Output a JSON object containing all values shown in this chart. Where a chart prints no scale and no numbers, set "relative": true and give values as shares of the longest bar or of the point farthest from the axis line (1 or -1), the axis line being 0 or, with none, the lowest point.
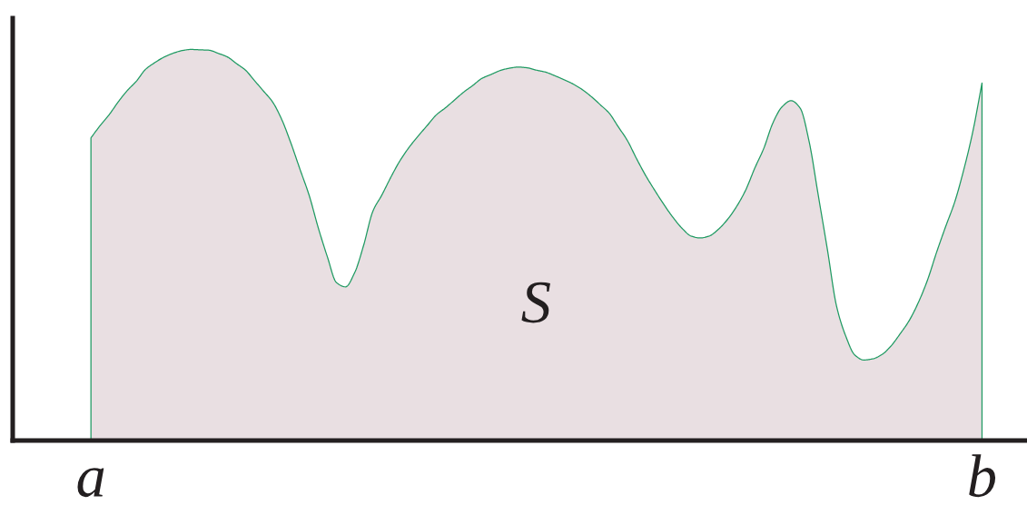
{
  "chart_data": {
    "type": "area",
    "relative": true,
    "categories": [
      "a",
      null,
      null,
      null,
      null,
      null,
      null,
      null,
      null,
      null,
      null,
      null,
      null,
      null,
      null,
      null,
      null,
      null,
      null,
      null,
      null,
      null,
      null,
      null,
      null,
      null,
      null,
      null,
      null,
      null,
      null,
      null,
      null,
      null,
      null,
      null,
      null,
      null,
      null,
      null,
      null,
      null,
      null,
      null,
      null,
      null,
      null,
      null,
      null,
      null,
      null,
      null,
      null,
      null,
      null,
      null,
      null,
      null,
      null,
      null,
      null,
      null,
      null,
      null,
      null,
      null,
      null,
      null,
      null,
      null,
      null,
      null,
      null,
      null,
      null,
      null,
      null,
      null,
      null,
      null,
      null,
      null,
      null,
      null,
      null,
      null,
      null,
      null,
      null,
      null,
      null,
      null,
      null,
      null,
      null,
      null,
      null,
      null,
      "b"
    ],
    "series": [
      {
        "color": "#e9dfe2",
        "values": [
          0.774,
          0.805,
          0.833,
          0.866,
          0.895,
          0.919,
          0.949,
          0.966,
          0.98,
          0.99,
          0.997,
          1,
          0.999,
          0.998,
          0.99,
          0.981,
          0.964,
          0.947,
          0.92,
          0.893,
          0.865,
          0.82,
          0.76,
          0.693,
          0.627,
          0.544,
          0.47,
          0.404,
          0.393,
          0.429,
          0.5,
          0.586,
          0.628,
          0.674,
          0.716,
          0.75,
          0.779,
          0.806,
          0.833,
          0.851,
          0.871,
          0.891,
          0.908,
          0.926,
          0.936,
          0.946,
          0.952,
          0.955,
          0.953,
          0.947,
          0.942,
          0.933,
          0.923,
          0.912,
          0.898,
          0.88,
          0.859,
          0.837,
          0.802,
          0.767,
          0.721,
          0.678,
          0.64,
          0.604,
          0.571,
          0.543,
          0.523,
          0.518,
          0.523,
          0.54,
          0.565,
          0.598,
          0.64,
          0.696,
          0.747,
          0.812,
          0.853,
          0.869,
          0.85,
          0.763,
          0.626,
          0.488,
          0.344,
          0.268,
          0.219,
          0.206,
          0.209,
          0.22,
          0.242,
          0.273,
          0.307,
          0.353,
          0.41,
          0.481,
          0.547,
          0.61,
          0.693,
          0.791,
          0.914
        ]
      }
    ],
    "tick_labels": "x",
    "annotations": [
      "S"
    ]
  }
}
